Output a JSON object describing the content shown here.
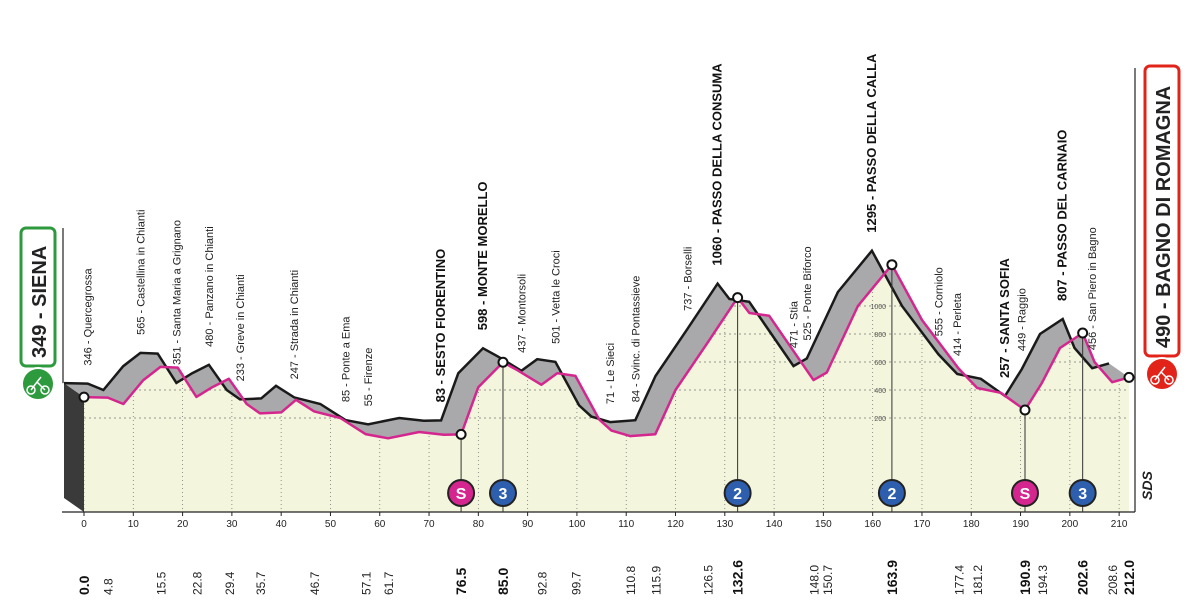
{
  "chart_data": {
    "type": "area",
    "x": [
      0,
      4.8,
      8,
      12,
      15.5,
      19,
      22.8,
      26,
      29.4,
      33,
      35.7,
      40,
      43,
      46.7,
      52,
      57.1,
      61.7,
      68,
      73,
      76.5,
      80,
      85,
      88,
      92.8,
      96,
      99.7,
      104.5,
      107,
      110.8,
      115.9,
      120,
      126.5,
      132.6,
      135,
      139,
      148,
      150.7,
      157,
      163.9,
      170,
      177.4,
      181.2,
      186,
      190.9,
      194.3,
      198,
      202.6,
      205,
      208.6,
      212
    ],
    "values": [
      349,
      346,
      300,
      470,
      565,
      560,
      351,
      420,
      480,
      300,
      233,
      240,
      330,
      247,
      200,
      85,
      55,
      100,
      80,
      83,
      420,
      598,
      540,
      437,
      520,
      501,
      190,
      110,
      71,
      84,
      400,
      737,
      1060,
      950,
      930,
      471,
      525,
      1000,
      1295,
      900,
      555,
      414,
      380,
      257,
      449,
      700,
      807,
      600,
      456,
      490
    ],
    "xlim": [
      0,
      212
    ],
    "ylim": [
      0,
      1300
    ],
    "xticks": [
      0,
      10,
      20,
      30,
      40,
      50,
      60,
      70,
      80,
      90,
      100,
      110,
      120,
      130,
      140,
      150,
      160,
      170,
      180,
      190,
      200,
      210
    ],
    "yticks": [
      200,
      400,
      600,
      800,
      1000
    ],
    "grid": true,
    "line_color": "#d4268e",
    "fill_color": "#f3f5dc",
    "ribbon_color": "#a9a9ab",
    "start": {
      "label": "349 - SIENA",
      "km": {
        "value": 0,
        "label": "0.0"
      },
      "color": "#2e9a3e"
    },
    "finish": {
      "label": "490 - BAGNO DI ROMAGNA",
      "km": {
        "value": 212,
        "label": "212.0"
      },
      "color": "#e2231a"
    },
    "logo": "SDS",
    "waypoints": [
      {
        "label": "346 - Quercegrossa",
        "km": 4.8
      },
      {
        "label": "565 - Castellina in Chianti",
        "km": 15.5
      },
      {
        "label": "351 - Santa Maria a Grignano",
        "km": 22.8
      },
      {
        "label": "480 - Panzano in Chianti",
        "km": 29.4
      },
      {
        "label": "233 - Greve in Chianti",
        "km": 35.7
      },
      {
        "label": "247 - Strada in Chianti",
        "km": 46.7
      },
      {
        "label": "85 - Ponte a Ema",
        "km": 57.1
      },
      {
        "label": "55 - Firenze",
        "km": 61.7
      },
      {
        "label": "83 - SESTO FIORENTINO",
        "km": 76.5,
        "bold": true,
        "badge": {
          "text": "S",
          "color": "#d4268e"
        }
      },
      {
        "label": "598 - MONTE MORELLO",
        "km": {
          "value": 85,
          "label": "85.0"
        },
        "bold": true,
        "badge": {
          "text": "3",
          "color": "#2d5fae"
        }
      },
      {
        "label": "437 - Montorsoli",
        "km": 92.8
      },
      {
        "label": "501 - Vetta le Croci",
        "km": 99.7
      },
      {
        "label": "71 - Le Sieci",
        "km": 110.8
      },
      {
        "label": "84 - Svinc. di Pontassieve",
        "km": 115.9
      },
      {
        "label": "737 - Borselli",
        "km": 126.5
      },
      {
        "label": "1060 - PASSO DELLA CONSUMA",
        "km": 132.6,
        "bold": true,
        "badge": {
          "text": "2",
          "color": "#2d5fae"
        }
      },
      {
        "label": "471 - Stia",
        "km": {
          "value": 148,
          "label": "148.0"
        }
      },
      {
        "label": "525 - Ponte Biforco",
        "km": 150.7
      },
      {
        "label": "1295 - PASSO DELLA CALLA",
        "km": 163.9,
        "bold": true,
        "badge": {
          "text": "2",
          "color": "#2d5fae"
        }
      },
      {
        "label": "555 - Corniolo",
        "km": 177.4
      },
      {
        "label": "414 - Perleta",
        "km": 181.2
      },
      {
        "label": "257 - SANTA SOFIA",
        "km": 190.9,
        "bold": true,
        "badge": {
          "text": "S",
          "color": "#d4268e"
        }
      },
      {
        "label": "449 - Raggio",
        "km": 194.3
      },
      {
        "label": "807 - PASSO DEL CARNAIO",
        "km": 202.6,
        "bold": true,
        "badge": {
          "text": "3",
          "color": "#2d5fae"
        }
      },
      {
        "label": "456 - San Piero in Bagno",
        "km": 208.6
      }
    ]
  }
}
